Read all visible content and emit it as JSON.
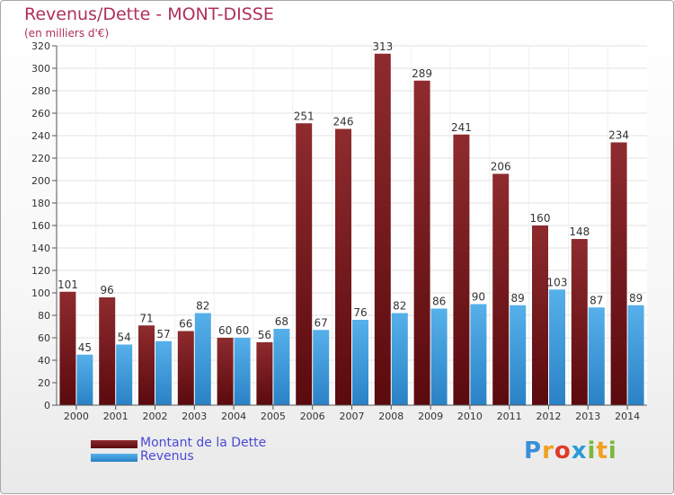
{
  "chart_data": {
    "type": "bar",
    "title": "Revenus/Dette - MONT-DISSE",
    "subtitle": "(en milliers d'€)",
    "categories": [
      "2000",
      "2001",
      "2002",
      "2003",
      "2004",
      "2005",
      "2006",
      "2007",
      "2008",
      "2009",
      "2010",
      "2011",
      "2012",
      "2013",
      "2014"
    ],
    "series": [
      {
        "name": "Montant de la Dette",
        "color": "#7a1a1e",
        "values": [
          101,
          96,
          71,
          66,
          60,
          56,
          251,
          246,
          313,
          289,
          241,
          206,
          160,
          148,
          234
        ]
      },
      {
        "name": "Revenus",
        "color": "#3a9ad9",
        "values": [
          45,
          54,
          57,
          82,
          60,
          68,
          67,
          76,
          82,
          86,
          90,
          89,
          103,
          87,
          89
        ]
      }
    ],
    "yticks": [
      0,
      20,
      40,
      60,
      80,
      100,
      120,
      140,
      160,
      180,
      200,
      220,
      240,
      260,
      280,
      300,
      320
    ],
    "ylim": [
      0,
      320
    ],
    "grid": true,
    "legend_position": "bottom-left"
  },
  "logo": {
    "letters": [
      {
        "char": "P",
        "color": "#3a8fd8"
      },
      {
        "char": "r",
        "color": "#f0a020"
      },
      {
        "char": "o",
        "color": "#e03a2a"
      },
      {
        "char": "x",
        "color": "#2a9ad9"
      },
      {
        "char": "i",
        "color": "#7ab83a"
      },
      {
        "char": "t",
        "color": "#f0a020"
      },
      {
        "char": "i",
        "color": "#7ab83a"
      }
    ]
  }
}
